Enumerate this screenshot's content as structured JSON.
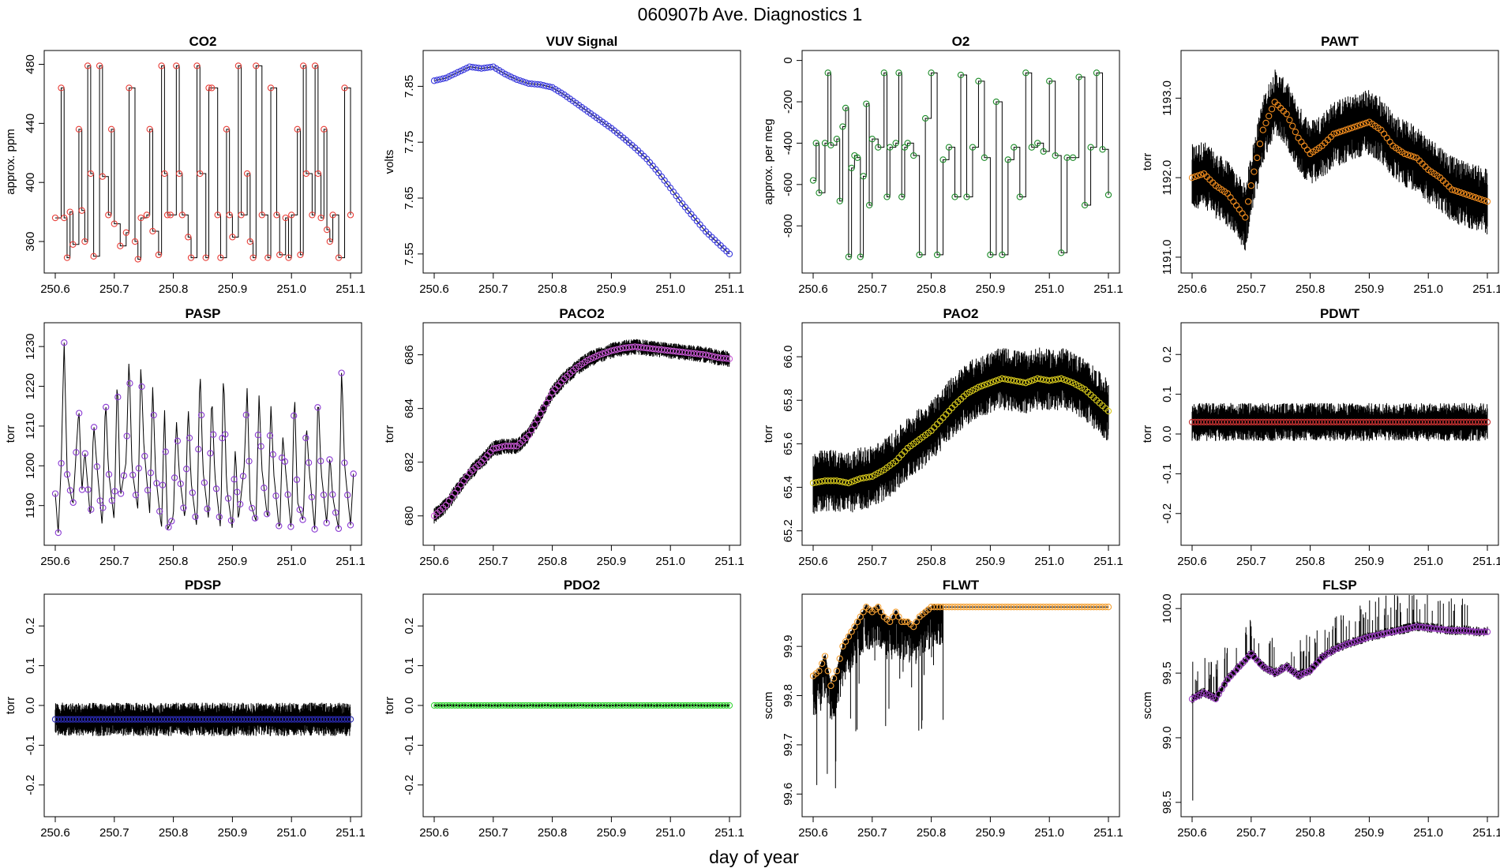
{
  "figure": {
    "title": "060907b   Ave. Diagnostics 1",
    "xlabel": "day of year"
  },
  "colors": {
    "red": "#e8403a",
    "blue": "#3a3adc",
    "green": "#1e8c2a",
    "orange": "#f08c1e",
    "purple": "#8a3ad2",
    "magenta": "#cc5ad8",
    "yellow": "#d6c81c",
    "darkred": "#c83232",
    "navy": "#2a2ab4",
    "lime": "#3ad83a",
    "orange2": "#f5a032",
    "violet": "#a040c8"
  },
  "chart_data": [
    {
      "type": "line",
      "title": "CO2",
      "ylabel": "approx. ppm",
      "xlim": [
        250.6,
        251.1
      ],
      "ylim": [
        344,
        484
      ],
      "xticks": [
        "250.6",
        "250.7",
        "250.8",
        "250.9",
        "251.0",
        "251.1"
      ],
      "yticks": [
        "360",
        "400",
        "440",
        "480"
      ],
      "color": "red",
      "style": "steps",
      "x": [
        250.6,
        250.61,
        250.615,
        250.62,
        250.625,
        250.63,
        250.64,
        250.645,
        250.65,
        250.655,
        250.66,
        250.665,
        250.675,
        250.68,
        250.69,
        250.695,
        250.7,
        250.71,
        250.72,
        250.725,
        250.735,
        250.74,
        250.745,
        250.755,
        250.76,
        250.765,
        250.775,
        250.78,
        250.785,
        250.79,
        250.795,
        250.805,
        250.81,
        250.815,
        250.825,
        250.83,
        250.84,
        250.845,
        250.855,
        250.86,
        250.865,
        250.875,
        250.88,
        250.89,
        250.895,
        250.9,
        250.91,
        250.915,
        250.925,
        250.93,
        250.935,
        250.94,
        250.95,
        250.96,
        250.965,
        250.975,
        250.98,
        250.99,
        250.995,
        251.0,
        251.01,
        251.015,
        251.02,
        251.025,
        251.035,
        251.04,
        251.045,
        251.05,
        251.055,
        251.06,
        251.065,
        251.07,
        251.08,
        251.09,
        251.1
      ],
      "values": [
        376,
        464,
        376,
        349,
        380,
        358,
        436,
        381,
        360,
        479,
        406,
        350,
        479,
        404,
        378,
        436,
        372,
        357,
        366,
        464,
        360,
        348,
        376,
        378,
        436,
        367,
        351,
        479,
        406,
        378,
        378,
        479,
        406,
        378,
        363,
        349,
        479,
        406,
        349,
        464,
        464,
        378,
        349,
        436,
        378,
        363,
        479,
        378,
        406,
        360,
        349,
        479,
        378,
        349,
        464,
        378,
        351,
        376,
        349,
        378,
        436,
        351,
        479,
        406,
        378,
        479,
        406,
        376,
        436,
        368,
        360,
        378,
        349,
        464,
        378
      ]
    },
    {
      "type": "line",
      "title": "VUV Signal",
      "ylabel": "volts",
      "xlim": [
        250.6,
        251.1
      ],
      "ylim": [
        7.53,
        7.9
      ],
      "xticks": [
        "250.6",
        "250.7",
        "250.8",
        "250.9",
        "251.0",
        "251.1"
      ],
      "yticks": [
        "7.55",
        "7.65",
        "7.75",
        "7.85"
      ],
      "color": "blue",
      "style": "line",
      "x": [
        250.6,
        250.62,
        250.64,
        250.66,
        250.68,
        250.7,
        250.72,
        250.74,
        250.76,
        250.78,
        250.8,
        250.82,
        250.84,
        250.86,
        250.88,
        250.9,
        250.92,
        250.94,
        250.96,
        250.98,
        251.0,
        251.02,
        251.04,
        251.06,
        251.08,
        251.1
      ],
      "values": [
        7.86,
        7.865,
        7.875,
        7.885,
        7.882,
        7.885,
        7.872,
        7.862,
        7.855,
        7.853,
        7.848,
        7.835,
        7.82,
        7.805,
        7.79,
        7.775,
        7.758,
        7.74,
        7.72,
        7.695,
        7.668,
        7.64,
        7.615,
        7.59,
        7.57,
        7.55
      ]
    },
    {
      "type": "line",
      "title": "O2",
      "ylabel": "approx. per meg",
      "xlim": [
        250.6,
        251.1
      ],
      "ylim": [
        -990,
        10
      ],
      "xticks": [
        "250.6",
        "250.7",
        "250.8",
        "250.9",
        "251.0",
        "251.1"
      ],
      "yticks": [
        "-800",
        "-600",
        "-400",
        "-200",
        "0"
      ],
      "color": "green",
      "style": "steps",
      "x": [
        250.6,
        250.605,
        250.61,
        250.62,
        250.625,
        250.63,
        250.64,
        250.645,
        250.65,
        250.655,
        250.66,
        250.665,
        250.67,
        250.675,
        250.68,
        250.685,
        250.69,
        250.695,
        250.7,
        250.71,
        250.72,
        250.725,
        250.73,
        250.74,
        250.745,
        250.75,
        250.755,
        250.76,
        250.77,
        250.78,
        250.79,
        250.8,
        250.81,
        250.82,
        250.83,
        250.84,
        250.85,
        250.86,
        250.87,
        250.88,
        250.89,
        250.9,
        250.91,
        250.92,
        250.93,
        250.94,
        250.95,
        250.96,
        250.97,
        250.98,
        250.99,
        251.0,
        251.01,
        251.02,
        251.03,
        251.04,
        251.05,
        251.06,
        251.07,
        251.08,
        251.09,
        251.1
      ],
      "values": [
        -580,
        -400,
        -640,
        -400,
        -60,
        -410,
        -380,
        -680,
        -320,
        -230,
        -950,
        -520,
        -460,
        -470,
        -950,
        -560,
        -210,
        -700,
        -380,
        -420,
        -60,
        -660,
        -420,
        -400,
        -60,
        -660,
        -420,
        -400,
        -460,
        -940,
        -280,
        -60,
        -940,
        -480,
        -420,
        -660,
        -70,
        -660,
        -420,
        -100,
        -470,
        -940,
        -200,
        -940,
        -480,
        -420,
        -660,
        -60,
        -420,
        -400,
        -440,
        -100,
        -460,
        -930,
        -470,
        -470,
        -80,
        -700,
        -420,
        -60,
        -430,
        -650
      ]
    },
    {
      "type": "line",
      "title": "PAWT",
      "ylabel": "torr",
      "xlim": [
        250.6,
        251.1
      ],
      "ylim": [
        1190.9,
        1193.5
      ],
      "xticks": [
        "250.6",
        "250.7",
        "250.8",
        "250.9",
        "251.0",
        "251.1"
      ],
      "yticks": [
        "1191.0",
        "1192.0",
        "1193.0"
      ],
      "color": "orange",
      "style": "noisy",
      "noise": 0.35,
      "x": [
        250.6,
        250.62,
        250.64,
        250.66,
        250.68,
        250.69,
        250.7,
        250.72,
        250.74,
        250.76,
        250.78,
        250.8,
        250.82,
        250.84,
        250.86,
        250.88,
        250.9,
        250.92,
        250.94,
        250.96,
        250.98,
        251.0,
        251.02,
        251.04,
        251.06,
        251.08,
        251.1
      ],
      "values": [
        1192.0,
        1192.05,
        1191.9,
        1191.8,
        1191.6,
        1191.5,
        1191.9,
        1192.6,
        1192.95,
        1192.8,
        1192.5,
        1192.3,
        1192.4,
        1192.55,
        1192.6,
        1192.65,
        1192.7,
        1192.6,
        1192.4,
        1192.3,
        1192.25,
        1192.1,
        1192.0,
        1191.85,
        1191.8,
        1191.75,
        1191.7
      ]
    },
    {
      "type": "line",
      "title": "PASP",
      "ylabel": "torr",
      "xlim": [
        250.6,
        251.1
      ],
      "ylim": [
        1182,
        1234
      ],
      "xticks": [
        "250.6",
        "250.7",
        "250.8",
        "250.9",
        "251.0",
        "251.1"
      ],
      "yticks": [
        "1190",
        "1200",
        "1210",
        "1220",
        "1230"
      ],
      "color": "purple",
      "style": "line",
      "x": [
        250.6,
        250.605,
        250.61,
        250.615,
        250.62,
        250.63,
        250.64,
        250.645,
        250.65,
        250.66,
        250.665,
        250.67,
        250.68,
        250.685,
        250.69,
        250.7,
        250.705,
        250.71,
        250.72,
        250.725,
        250.73,
        250.74,
        250.745,
        250.75,
        250.76,
        250.765,
        250.77,
        250.78,
        250.785,
        250.79,
        250.8,
        250.805,
        250.81,
        250.82,
        250.825,
        250.83,
        250.84,
        250.845,
        250.85,
        250.86,
        250.865,
        250.87,
        250.88,
        250.885,
        250.89,
        250.9,
        250.905,
        250.91,
        250.92,
        250.925,
        250.93,
        250.94,
        250.945,
        250.95,
        250.96,
        250.965,
        250.97,
        250.98,
        250.985,
        250.99,
        251.0,
        251.005,
        251.01,
        251.02,
        251.025,
        251.03,
        251.04,
        251.045,
        251.05,
        251.06,
        251.065,
        251.07,
        251.08,
        251.085,
        251.09,
        251.1,
        251.105
      ],
      "values": [
        1193,
        1183,
        1200,
        1232,
        1198,
        1190,
        1215,
        1193,
        1204,
        1186,
        1211,
        1201,
        1184,
        1218,
        1199,
        1186,
        1224,
        1192,
        1201,
        1228,
        1199,
        1189,
        1226,
        1205,
        1188,
        1220,
        1198,
        1184,
        1215,
        1184,
        1187,
        1212,
        1198,
        1186,
        1216,
        1196,
        1184,
        1226,
        1199,
        1186,
        1219,
        1198,
        1184,
        1225,
        1195,
        1184,
        1205,
        1186,
        1200,
        1220,
        1191,
        1186,
        1218,
        1199,
        1186,
        1216,
        1198,
        1183,
        1208,
        1199,
        1183,
        1220,
        1191,
        1186,
        1211,
        1199,
        1183,
        1219,
        1199,
        1185,
        1203,
        1192,
        1184,
        1225,
        1200,
        1185,
        1198
      ]
    },
    {
      "type": "line",
      "title": "PACO2",
      "ylabel": "torr",
      "xlim": [
        250.6,
        251.1
      ],
      "ylim": [
        679.2,
        686.9
      ],
      "xticks": [
        "250.6",
        "250.7",
        "250.8",
        "250.9",
        "251.0",
        "251.1"
      ],
      "yticks": [
        "680",
        "682",
        "684",
        "686"
      ],
      "color": "magenta",
      "style": "noisy",
      "noise": 0.25,
      "x": [
        250.6,
        250.62,
        250.64,
        250.66,
        250.68,
        250.7,
        250.72,
        250.74,
        250.76,
        250.78,
        250.8,
        250.82,
        250.84,
        250.86,
        250.88,
        250.9,
        250.92,
        250.94,
        250.96,
        250.98,
        251.0,
        251.02,
        251.04,
        251.06,
        251.08,
        251.1
      ],
      "values": [
        680.0,
        680.4,
        681.0,
        681.6,
        682.0,
        682.5,
        682.6,
        682.6,
        683.0,
        683.8,
        684.6,
        685.1,
        685.5,
        685.8,
        686.0,
        686.15,
        686.25,
        686.3,
        686.25,
        686.2,
        686.15,
        686.1,
        686.05,
        686.0,
        685.9,
        685.85
      ]
    },
    {
      "type": "line",
      "title": "PAO2",
      "ylabel": "torr",
      "xlim": [
        250.6,
        251.1
      ],
      "ylim": [
        65.17,
        66.12
      ],
      "xticks": [
        "250.6",
        "250.7",
        "250.8",
        "250.9",
        "251.0",
        "251.1"
      ],
      "yticks": [
        "65.2",
        "65.4",
        "65.6",
        "65.8",
        "66.0"
      ],
      "color": "yellow",
      "style": "noisy",
      "noise": 0.12,
      "x": [
        250.6,
        250.62,
        250.64,
        250.66,
        250.68,
        250.7,
        250.72,
        250.74,
        250.76,
        250.78,
        250.8,
        250.82,
        250.84,
        250.86,
        250.88,
        250.9,
        250.92,
        250.94,
        250.96,
        250.98,
        251.0,
        251.02,
        251.04,
        251.06,
        251.08,
        251.1
      ],
      "values": [
        65.42,
        65.43,
        65.43,
        65.42,
        65.44,
        65.45,
        65.48,
        65.52,
        65.58,
        65.62,
        65.66,
        65.72,
        65.78,
        65.83,
        65.86,
        65.88,
        65.9,
        65.89,
        65.88,
        65.9,
        65.89,
        65.9,
        65.88,
        65.85,
        65.8,
        65.75
      ]
    },
    {
      "type": "line",
      "title": "PDWT",
      "ylabel": "torr",
      "xlim": [
        250.6,
        251.1
      ],
      "ylim": [
        -0.26,
        0.26
      ],
      "xticks": [
        "250.6",
        "250.7",
        "250.8",
        "250.9",
        "251.0",
        "251.1"
      ],
      "yticks": [
        "-0.2",
        "-0.1",
        "0.0",
        "0.1",
        "0.2"
      ],
      "color": "darkred",
      "style": "noisy",
      "noise": 0.04,
      "x": [
        250.6,
        250.7,
        250.8,
        250.9,
        251.0,
        251.1
      ],
      "values": [
        0.03,
        0.03,
        0.03,
        0.03,
        0.03,
        0.03
      ]
    },
    {
      "type": "line",
      "title": "PDSP",
      "ylabel": "torr",
      "xlim": [
        250.6,
        251.1
      ],
      "ylim": [
        -0.26,
        0.26
      ],
      "xticks": [
        "250.6",
        "250.7",
        "250.8",
        "250.9",
        "251.0",
        "251.1"
      ],
      "yticks": [
        "-0.2",
        "-0.1",
        "0.0",
        "0.1",
        "0.2"
      ],
      "color": "navy",
      "style": "noisy",
      "noise": 0.035,
      "x": [
        250.6,
        250.7,
        250.8,
        250.9,
        251.0,
        251.1
      ],
      "values": [
        -0.035,
        -0.035,
        -0.035,
        -0.035,
        -0.035,
        -0.035
      ]
    },
    {
      "type": "line",
      "title": "PDO2",
      "ylabel": "torr",
      "xlim": [
        250.6,
        251.1
      ],
      "ylim": [
        -0.26,
        0.26
      ],
      "xticks": [
        "250.6",
        "250.7",
        "250.8",
        "250.9",
        "251.0",
        "251.1"
      ],
      "yticks": [
        "-0.2",
        "-0.1",
        "0.0",
        "0.1",
        "0.2"
      ],
      "color": "lime",
      "style": "noisy",
      "noise": 0.003,
      "x": [
        250.6,
        250.7,
        250.8,
        250.9,
        251.0,
        251.1
      ],
      "values": [
        0.0,
        0.0,
        0.0,
        0.0,
        0.0,
        0.0
      ]
    },
    {
      "type": "line",
      "title": "FLWT",
      "ylabel": "sccm",
      "xlim": [
        250.6,
        251.1
      ],
      "ylim": [
        99.57,
        99.99
      ],
      "xticks": [
        "250.6",
        "250.7",
        "250.8",
        "250.9",
        "251.0",
        "251.1"
      ],
      "yticks": [
        "99.6",
        "99.7",
        "99.8",
        "99.9"
      ],
      "color": "orange2",
      "style": "noisy-down",
      "noise": 0.14,
      "noiseEnd": 250.82,
      "x": [
        250.6,
        250.61,
        250.62,
        250.63,
        250.64,
        250.65,
        250.66,
        250.67,
        250.68,
        250.69,
        250.7,
        250.71,
        250.72,
        250.73,
        250.74,
        250.75,
        250.76,
        250.77,
        250.78,
        250.79,
        250.8,
        250.82,
        250.86,
        250.9,
        250.95,
        251.0,
        251.05,
        251.1
      ],
      "values": [
        99.84,
        99.85,
        99.88,
        99.82,
        99.85,
        99.9,
        99.92,
        99.94,
        99.96,
        99.98,
        99.97,
        99.98,
        99.96,
        99.95,
        99.97,
        99.95,
        99.95,
        99.94,
        99.96,
        99.97,
        99.98,
        99.98,
        99.98,
        99.98,
        99.98,
        99.98,
        99.98,
        99.98
      ]
    },
    {
      "type": "line",
      "title": "FLSP",
      "ylabel": "sccm",
      "xlim": [
        250.6,
        251.1
      ],
      "ylim": [
        98.45,
        100.05
      ],
      "xticks": [
        "250.6",
        "250.7",
        "250.8",
        "250.9",
        "251.0",
        "251.1"
      ],
      "yticks": [
        "98.5",
        "99.0",
        "99.5",
        "100.0"
      ],
      "color": "violet",
      "style": "noisy-up",
      "noise": 0.12,
      "x": [
        250.6,
        250.62,
        250.64,
        250.66,
        250.68,
        250.7,
        250.72,
        250.74,
        250.76,
        250.78,
        250.8,
        250.82,
        250.84,
        250.86,
        250.88,
        250.9,
        250.92,
        250.94,
        250.96,
        250.98,
        251.0,
        251.02,
        251.04,
        251.06,
        251.08,
        251.1
      ],
      "values": [
        99.3,
        99.35,
        99.3,
        99.45,
        99.55,
        99.65,
        99.55,
        99.5,
        99.55,
        99.48,
        99.52,
        99.62,
        99.68,
        99.72,
        99.75,
        99.78,
        99.8,
        99.82,
        99.84,
        99.86,
        99.85,
        99.84,
        99.83,
        99.83,
        99.82,
        99.82
      ]
    }
  ]
}
